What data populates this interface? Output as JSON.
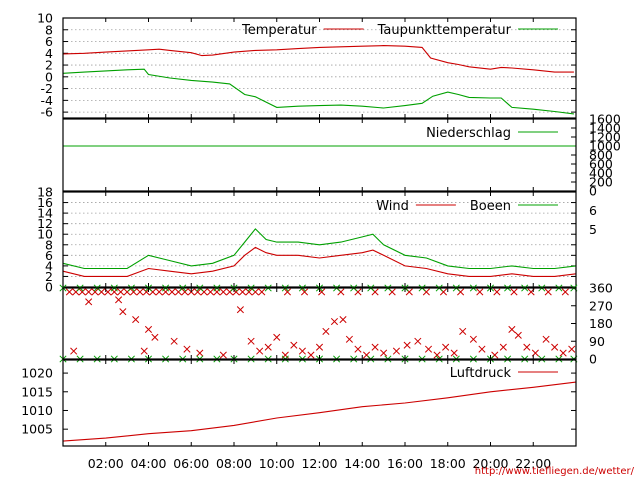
{
  "chart_data": [
    {
      "type": "line",
      "ylim": [
        -7,
        10
      ],
      "yticks": [
        10,
        8,
        6,
        4,
        2,
        0,
        -2,
        -4,
        -6
      ],
      "grid": true,
      "legend": "top-right",
      "series": [
        {
          "name": "Temperatur",
          "color": "#cc0000",
          "x": [
            0,
            1,
            2,
            3,
            4,
            4.5,
            5,
            6,
            6.5,
            7,
            8,
            9,
            10,
            11,
            12,
            13,
            14,
            15,
            16,
            16.8,
            17.2,
            18,
            18.5,
            19,
            20,
            20.5,
            21,
            22,
            23,
            23.9
          ],
          "y": [
            3.9,
            4.0,
            4.2,
            4.4,
            4.6,
            4.7,
            4.5,
            4.1,
            3.6,
            3.7,
            4.2,
            4.5,
            4.6,
            4.8,
            5.0,
            5.1,
            5.2,
            5.3,
            5.2,
            5.0,
            3.2,
            2.4,
            2.1,
            1.7,
            1.3,
            1.6,
            1.5,
            1.2,
            0.8,
            0.8
          ]
        },
        {
          "name": "Taupunkttemperatur",
          "color": "#00a000",
          "x": [
            0,
            1,
            2,
            3,
            3.8,
            4.0,
            5,
            6,
            7,
            7.8,
            8.5,
            9,
            9.5,
            10,
            11,
            12,
            13,
            14,
            15,
            16,
            16.8,
            17.3,
            18,
            18.5,
            19,
            20,
            20.5,
            21,
            22,
            23,
            23.9
          ],
          "y": [
            0.6,
            0.8,
            1.0,
            1.2,
            1.3,
            0.4,
            -0.2,
            -0.6,
            -0.9,
            -1.2,
            -3.0,
            -3.4,
            -4.3,
            -5.2,
            -5.0,
            -4.9,
            -4.8,
            -5.0,
            -5.3,
            -4.9,
            -4.5,
            -3.3,
            -2.6,
            -3.0,
            -3.5,
            -3.6,
            -3.6,
            -5.2,
            -5.5,
            -5.9,
            -6.3
          ]
        }
      ]
    },
    {
      "type": "line",
      "ylim": [
        0,
        1600
      ],
      "yticks": [
        1600,
        1400,
        1200,
        1000,
        800,
        600,
        400,
        200,
        0
      ],
      "legend": "top-right",
      "series": [
        {
          "name": "Niederschlag",
          "color": "#00a000",
          "x": [
            0,
            24
          ],
          "y": [
            1000,
            1000
          ]
        }
      ]
    },
    {
      "type": "line",
      "ylim": [
        0,
        18
      ],
      "yticks": [
        18,
        16,
        14,
        12,
        10,
        8,
        6,
        4,
        2,
        0
      ],
      "grid": true,
      "legend": "top-right",
      "right_labels": [
        "6",
        "5"
      ],
      "right_label_values": [
        14.5,
        10.9
      ],
      "series": [
        {
          "name": "Wind",
          "color": "#cc0000",
          "x": [
            0,
            1,
            2,
            3,
            4,
            5,
            6,
            7,
            8,
            8.5,
            9,
            9.5,
            10,
            11,
            12,
            13,
            14,
            14.5,
            15,
            16,
            17,
            18,
            19,
            20,
            21,
            22,
            23,
            24
          ],
          "y": [
            3,
            2,
            2,
            2,
            3.5,
            3,
            2.5,
            3,
            4,
            6,
            7.5,
            6.5,
            6,
            6,
            5.5,
            6,
            6.5,
            7,
            6,
            4,
            3.5,
            2.5,
            2,
            2,
            2.5,
            2,
            2,
            2.5
          ]
        },
        {
          "name": "Boeen",
          "color": "#00a000",
          "x": [
            0,
            1,
            2,
            3,
            4,
            5,
            6,
            7,
            8,
            8.5,
            9,
            9.5,
            10,
            11,
            12,
            13,
            14,
            14.5,
            15,
            16,
            17,
            18,
            19,
            20,
            21,
            22,
            23,
            24
          ],
          "y": [
            4.5,
            3.5,
            3.5,
            3.5,
            6,
            5,
            4,
            4.5,
            6,
            8.5,
            11,
            9,
            8.5,
            8.5,
            8,
            8.5,
            9.5,
            10,
            8,
            6,
            5.5,
            4,
            3.5,
            3.5,
            4,
            3.5,
            3.5,
            4
          ]
        }
      ]
    },
    {
      "type": "scatter",
      "ylim": [
        0,
        360
      ],
      "yticks": [
        360,
        270,
        180,
        90,
        0
      ],
      "series": [
        {
          "name": "",
          "color": "#cc0000",
          "points": [
            [
              0.3,
              340
            ],
            [
              0.6,
              340
            ],
            [
              0.9,
              340
            ],
            [
              1.2,
              340
            ],
            [
              1.5,
              340
            ],
            [
              1.8,
              340
            ],
            [
              2.1,
              340
            ],
            [
              2.4,
              340
            ],
            [
              2.7,
              340
            ],
            [
              3.0,
              340
            ],
            [
              3.3,
              340
            ],
            [
              3.6,
              340
            ],
            [
              3.9,
              340
            ],
            [
              4.2,
              340
            ],
            [
              4.5,
              340
            ],
            [
              4.8,
              340
            ],
            [
              5.1,
              340
            ],
            [
              5.4,
              340
            ],
            [
              5.7,
              340
            ],
            [
              6.0,
              340
            ],
            [
              6.3,
              340
            ],
            [
              6.6,
              340
            ],
            [
              6.9,
              340
            ],
            [
              7.2,
              340
            ],
            [
              7.5,
              340
            ],
            [
              7.8,
              340
            ],
            [
              8.1,
              340
            ],
            [
              8.4,
              340
            ],
            [
              8.7,
              340
            ],
            [
              9.0,
              340
            ],
            [
              9.3,
              340
            ],
            [
              10.5,
              340
            ],
            [
              11.3,
              340
            ],
            [
              12.1,
              340
            ],
            [
              13.0,
              340
            ],
            [
              13.8,
              340
            ],
            [
              14.6,
              340
            ],
            [
              15.4,
              340
            ],
            [
              16.2,
              340
            ],
            [
              17.0,
              340
            ],
            [
              17.8,
              340
            ],
            [
              18.6,
              340
            ],
            [
              19.5,
              340
            ],
            [
              20.3,
              340
            ],
            [
              21.1,
              340
            ],
            [
              21.9,
              340
            ],
            [
              22.7,
              340
            ],
            [
              23.5,
              340
            ],
            [
              1.2,
              290
            ],
            [
              2.6,
              300
            ],
            [
              2.8,
              240
            ],
            [
              3.4,
              200
            ],
            [
              4.0,
              150
            ],
            [
              4.3,
              110
            ],
            [
              5.2,
              90
            ],
            [
              5.8,
              50
            ],
            [
              6.4,
              30
            ],
            [
              8.3,
              250
            ],
            [
              8.8,
              90
            ],
            [
              9.2,
              40
            ],
            [
              9.6,
              60
            ],
            [
              10.0,
              110
            ],
            [
              10.4,
              20
            ],
            [
              10.8,
              70
            ],
            [
              11.2,
              40
            ],
            [
              11.6,
              20
            ],
            [
              12.0,
              60
            ],
            [
              12.3,
              140
            ],
            [
              12.7,
              190
            ],
            [
              13.1,
              200
            ],
            [
              13.4,
              100
            ],
            [
              13.8,
              50
            ],
            [
              14.2,
              20
            ],
            [
              14.6,
              60
            ],
            [
              15.0,
              30
            ],
            [
              15.6,
              40
            ],
            [
              16.1,
              70
            ],
            [
              16.6,
              90
            ],
            [
              17.1,
              50
            ],
            [
              17.5,
              20
            ],
            [
              17.9,
              60
            ],
            [
              18.3,
              30
            ],
            [
              18.7,
              140
            ],
            [
              19.2,
              100
            ],
            [
              19.6,
              50
            ],
            [
              20.2,
              20
            ],
            [
              20.6,
              60
            ],
            [
              21.0,
              150
            ],
            [
              21.3,
              120
            ],
            [
              21.7,
              60
            ],
            [
              22.1,
              30
            ],
            [
              22.6,
              100
            ],
            [
              23.0,
              60
            ],
            [
              23.4,
              30
            ],
            [
              23.8,
              50
            ],
            [
              0.5,
              40
            ],
            [
              3.8,
              40
            ],
            [
              7.5,
              20
            ]
          ]
        },
        {
          "name": "",
          "color": "#00a000",
          "points": [
            [
              0.0,
              360
            ],
            [
              0.8,
              360
            ],
            [
              1.6,
              360
            ],
            [
              2.4,
              360
            ],
            [
              3.2,
              360
            ],
            [
              4.0,
              360
            ],
            [
              4.8,
              360
            ],
            [
              5.6,
              360
            ],
            [
              6.4,
              360
            ],
            [
              7.2,
              360
            ],
            [
              8.0,
              360
            ],
            [
              8.8,
              360
            ],
            [
              9.6,
              360
            ],
            [
              10.4,
              360
            ],
            [
              11.2,
              360
            ],
            [
              12.0,
              360
            ],
            [
              12.8,
              360
            ],
            [
              13.6,
              360
            ],
            [
              14.4,
              360
            ],
            [
              15.2,
              360
            ],
            [
              16.0,
              360
            ],
            [
              16.8,
              360
            ],
            [
              17.6,
              360
            ],
            [
              18.4,
              360
            ],
            [
              19.2,
              360
            ],
            [
              20.0,
              360
            ],
            [
              20.8,
              360
            ],
            [
              21.6,
              360
            ],
            [
              22.4,
              360
            ],
            [
              23.2,
              360
            ],
            [
              23.9,
              360
            ],
            [
              0.0,
              0
            ],
            [
              0.8,
              0
            ],
            [
              1.6,
              0
            ],
            [
              2.4,
              0
            ],
            [
              3.2,
              0
            ],
            [
              4.0,
              0
            ],
            [
              4.8,
              0
            ],
            [
              5.6,
              0
            ],
            [
              6.4,
              0
            ],
            [
              7.2,
              0
            ],
            [
              8.0,
              0
            ],
            [
              8.8,
              0
            ],
            [
              9.6,
              0
            ],
            [
              10.4,
              0
            ],
            [
              11.2,
              0
            ],
            [
              12.0,
              0
            ],
            [
              12.8,
              0
            ],
            [
              13.6,
              0
            ],
            [
              14.4,
              0
            ],
            [
              15.2,
              0
            ],
            [
              16.0,
              0
            ],
            [
              16.8,
              0
            ],
            [
              17.6,
              0
            ],
            [
              18.4,
              0
            ],
            [
              19.2,
              0
            ],
            [
              20.0,
              0
            ],
            [
              20.8,
              0
            ],
            [
              21.6,
              0
            ],
            [
              22.4,
              0
            ],
            [
              23.2,
              0
            ],
            [
              23.9,
              0
            ]
          ]
        }
      ]
    },
    {
      "type": "line",
      "ylim": [
        1000.5,
        1023.5
      ],
      "yticks": [
        1020,
        1015,
        1010,
        1005
      ],
      "legend": "top-right",
      "series": [
        {
          "name": "Luftdruck",
          "color": "#cc0000",
          "x": [
            0,
            2,
            4,
            6,
            8,
            10,
            12,
            14,
            16,
            18,
            20,
            22,
            24
          ],
          "y": [
            1001.8,
            1002.6,
            1003.8,
            1004.6,
            1006.0,
            1008.0,
            1009.4,
            1011.0,
            1012.0,
            1013.4,
            1015.0,
            1016.2,
            1017.6
          ]
        }
      ]
    }
  ],
  "x_axis": {
    "ticks": [
      "02:00",
      "04:00",
      "06:00",
      "08:00",
      "10:00",
      "12:00",
      "14:00",
      "16:00",
      "18:00",
      "20:00",
      "22:00"
    ],
    "tick_hours": [
      2,
      4,
      6,
      8,
      10,
      12,
      14,
      16,
      18,
      20,
      22
    ],
    "range_hours": [
      0,
      24
    ]
  },
  "credit": "http://www.tiefliegen.de/wetter/"
}
